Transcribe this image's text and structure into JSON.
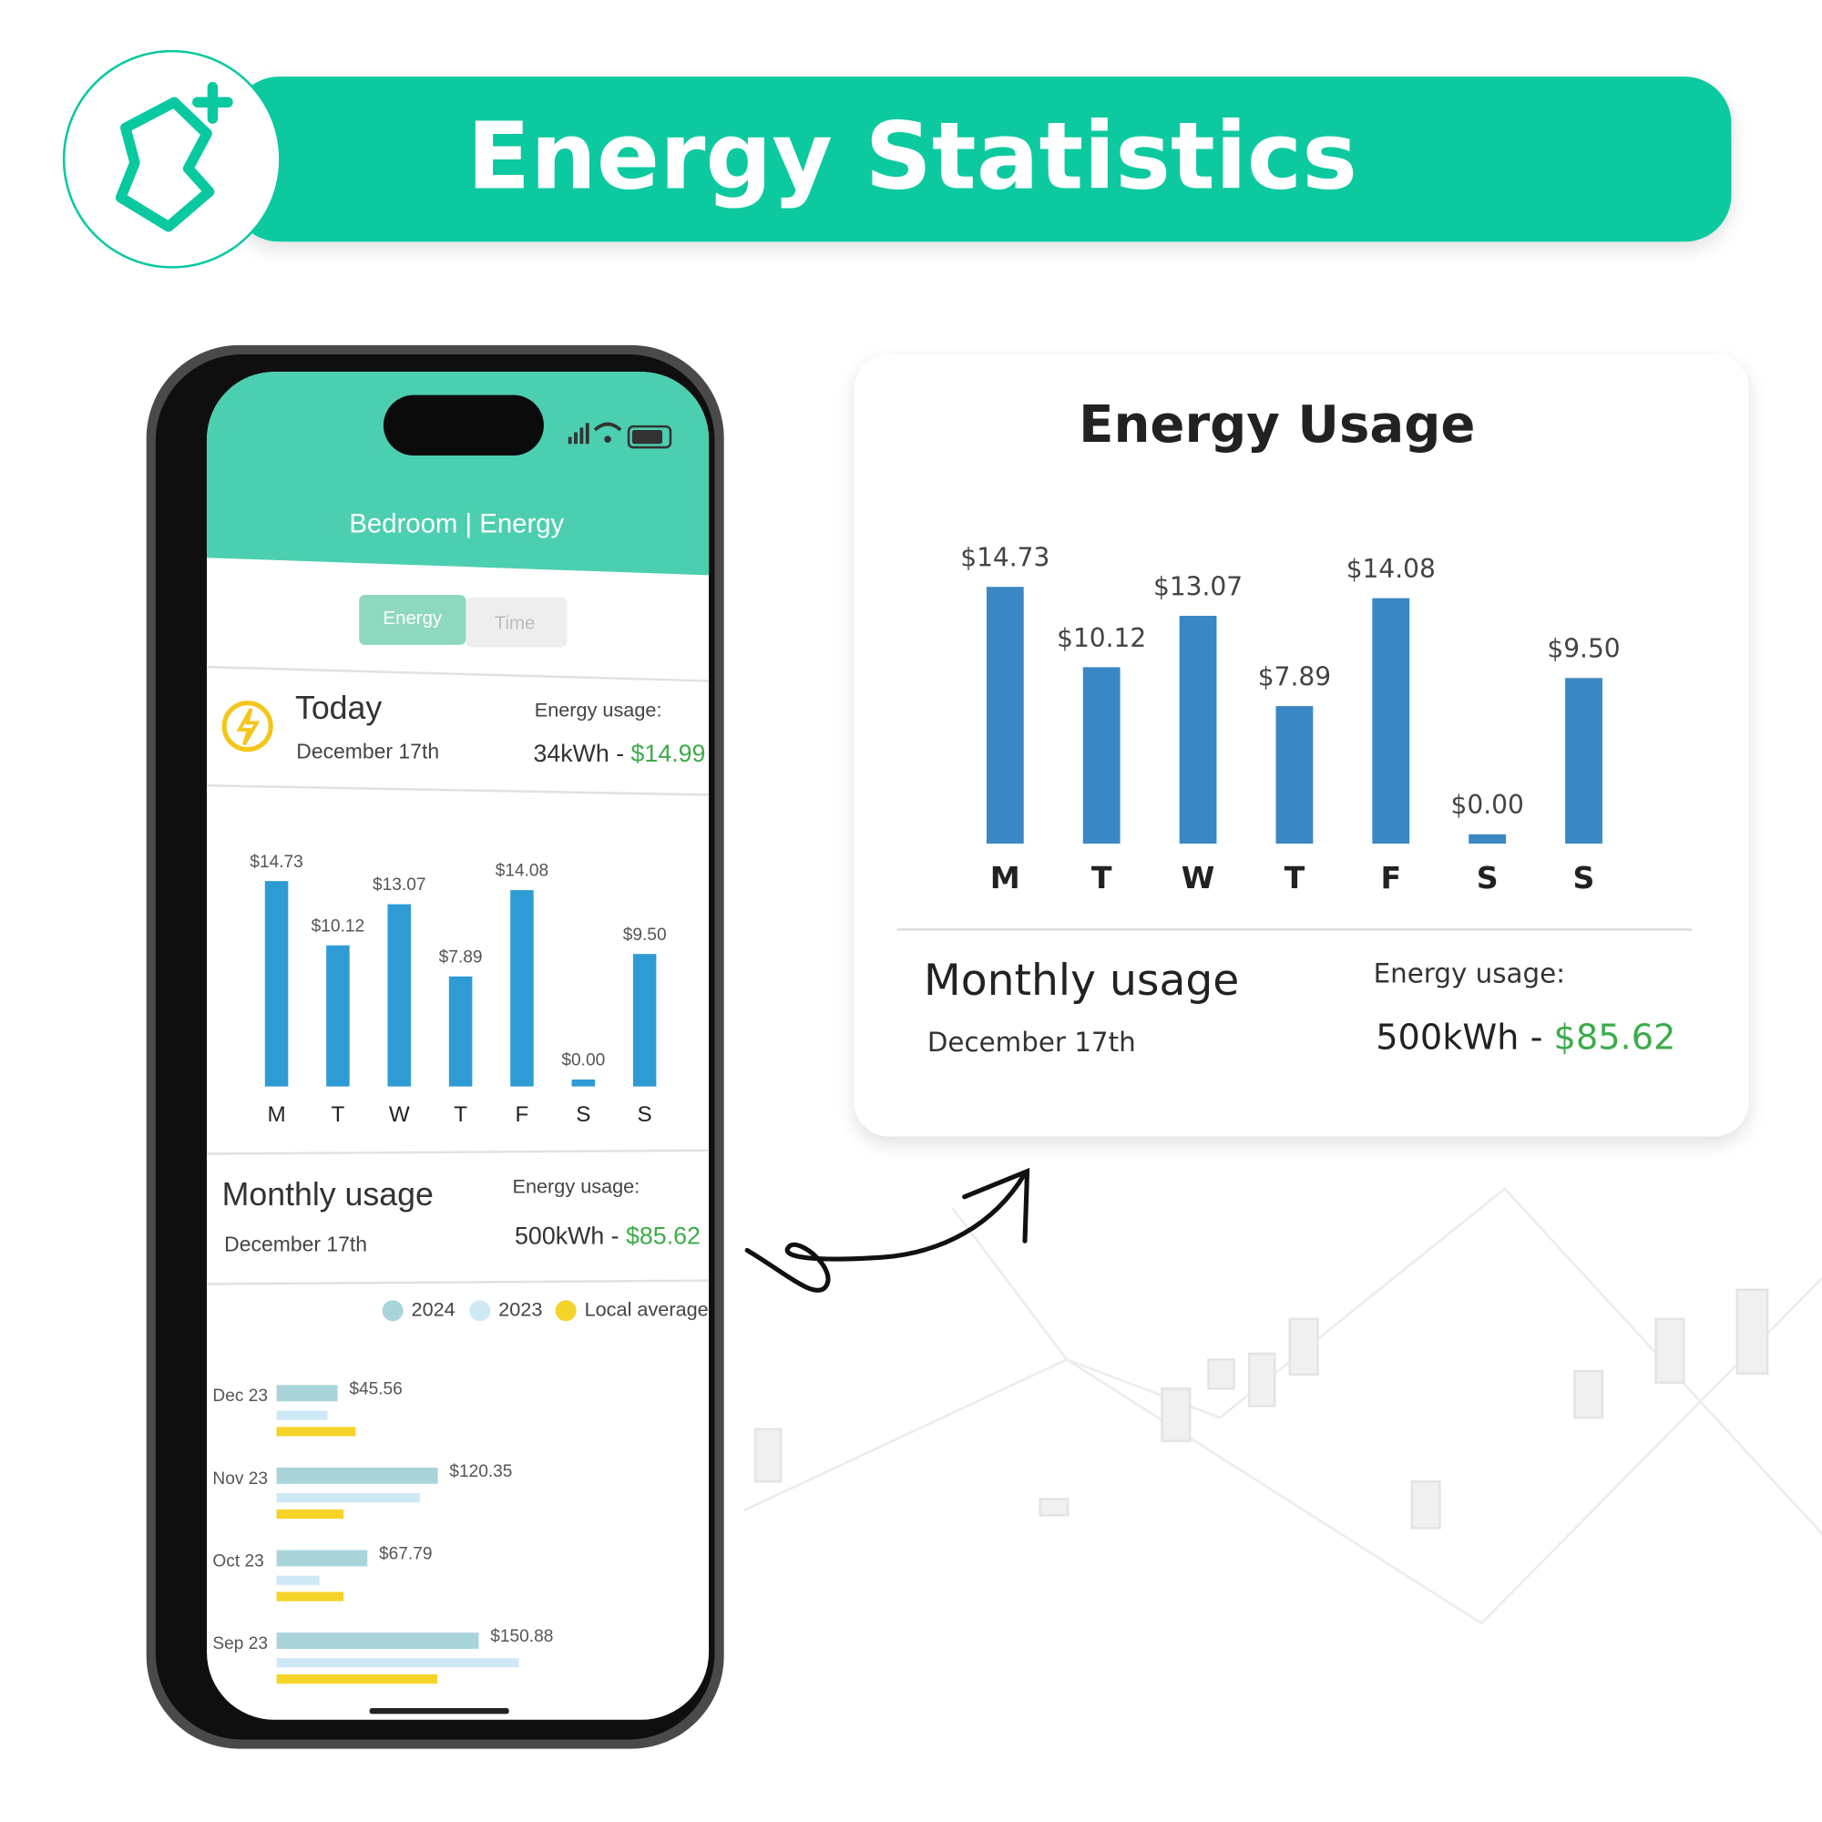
{
  "banner": {
    "title": "Energy Statistics"
  },
  "phone": {
    "header": "Bedroom | Energy",
    "tabs": [
      "Energy",
      "Time"
    ],
    "today": {
      "title": "Today",
      "date": "December 17th",
      "usage_label": "Energy usage:",
      "usage": "34kWh - ",
      "cost": "$14.99"
    },
    "monthly": {
      "title": "Monthly usage",
      "date": "December 17th",
      "usage_label": "Energy usage:",
      "usage": "500kWh - ",
      "cost": "$85.62"
    }
  },
  "card": {
    "monthly": {
      "title": "Monthly usage",
      "date": "December 17th",
      "usage_label": "Energy usage:",
      "usage": "500kWh - ",
      "cost": "$85.62"
    }
  },
  "chart_data": [
    {
      "type": "bar",
      "categories": [
        "M",
        "T",
        "W",
        "T",
        "F",
        "S",
        "S"
      ],
      "values": [
        14.73,
        10.12,
        13.07,
        7.89,
        14.08,
        0,
        9.5
      ],
      "value_labels": [
        "$14.73",
        "$10.12",
        "$13.07",
        "$7.89",
        "$14.08",
        "$0.00",
        "$9.50"
      ],
      "color": "#2f9bd4"
    },
    {
      "type": "bar",
      "title": "Energy Usage",
      "categories": [
        "M",
        "T",
        "W",
        "T",
        "F",
        "S",
        "S"
      ],
      "values": [
        14.73,
        10.12,
        13.07,
        7.89,
        14.08,
        0,
        9.5
      ],
      "value_labels": [
        "$14.73",
        "$10.12",
        "$13.07",
        "$7.89",
        "$14.08",
        "$0.00",
        "$9.50"
      ],
      "color": "#3a87c4"
    },
    {
      "type": "hbar",
      "categories": [
        "Dec 23",
        "Nov 23",
        "Oct 23",
        "Sep 23"
      ],
      "series": [
        {
          "name": "2024",
          "color": "#a8d4da",
          "values": [
            45.56,
            120.35,
            67.79,
            150.88
          ],
          "value_labels": [
            "$45.56",
            "$120.35",
            "$67.79",
            "$150.88"
          ]
        },
        {
          "name": "2023",
          "color": "#cfe8f5",
          "values": [
            38,
            107,
            32,
            181
          ]
        },
        {
          "name": "Local average",
          "color": "#f5d327",
          "values": [
            59,
            50,
            50,
            120
          ]
        }
      ]
    }
  ]
}
